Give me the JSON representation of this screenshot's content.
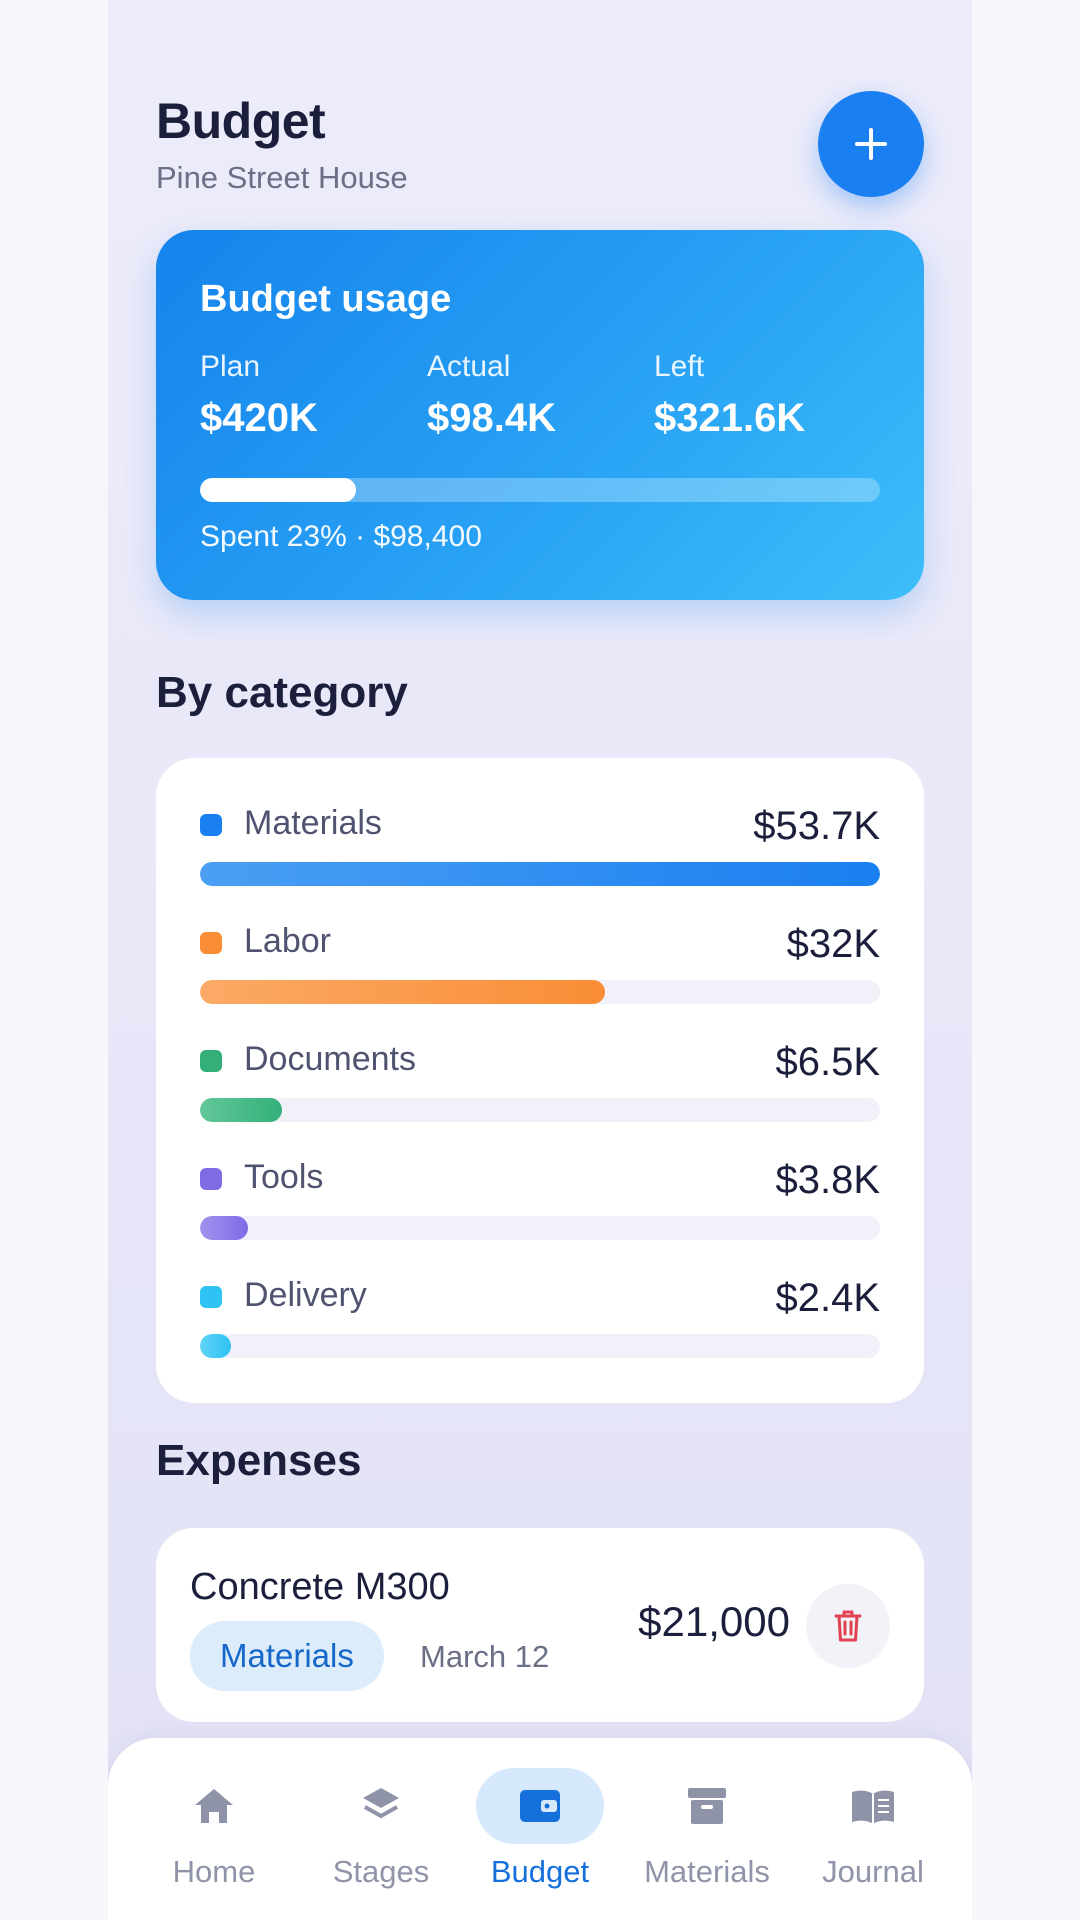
{
  "header": {
    "title": "Budget",
    "subtitle": "Pine Street House",
    "add_icon": "plus-icon"
  },
  "usage": {
    "title": "Budget usage",
    "plan_label": "Plan",
    "plan_value": "$420K",
    "actual_label": "Actual",
    "actual_value": "$98.4K",
    "left_label": "Left",
    "left_value": "$321.6K",
    "spent_fraction": 0.23,
    "caption": "Spent 23% · $98,400"
  },
  "categories": {
    "title": "By category",
    "items": [
      {
        "name": "Materials",
        "amount": "$53.7K",
        "fraction": 1.0,
        "color": "#1a7ff0",
        "color_light": "#4a9ff3"
      },
      {
        "name": "Labor",
        "amount": "$32K",
        "fraction": 0.596,
        "color": "#f98d36",
        "color_light": "#fbaa66"
      },
      {
        "name": "Documents",
        "amount": "$6.5K",
        "fraction": 0.121,
        "color": "#33b07a",
        "color_light": "#62c79a"
      },
      {
        "name": "Tools",
        "amount": "$3.8K",
        "fraction": 0.071,
        "color": "#7e6be6",
        "color_light": "#a193ee"
      },
      {
        "name": "Delivery",
        "amount": "$2.4K",
        "fraction": 0.045,
        "color": "#2ec3f3",
        "color_light": "#5fd2f6"
      }
    ]
  },
  "expenses": {
    "title": "Expenses",
    "items": [
      {
        "title": "Concrete M300",
        "tag": "Materials",
        "date": "March 12",
        "amount": "$21,000",
        "delete_icon": "trash-icon"
      }
    ]
  },
  "nav": {
    "items": [
      {
        "label": "Home",
        "icon": "home-icon",
        "active": false
      },
      {
        "label": "Stages",
        "icon": "layers-icon",
        "active": false
      },
      {
        "label": "Budget",
        "icon": "wallet-icon",
        "active": true
      },
      {
        "label": "Materials",
        "icon": "archive-icon",
        "active": false
      },
      {
        "label": "Journal",
        "icon": "book-icon",
        "active": false
      }
    ]
  },
  "colors": {
    "accent": "#1a7ff0",
    "danger": "#e0424f",
    "nav_inactive": "#9094a8"
  }
}
